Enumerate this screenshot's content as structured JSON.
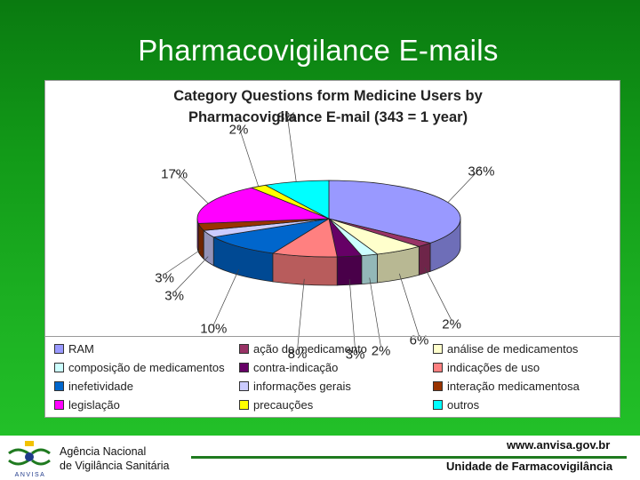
{
  "slide": {
    "title": "Pharmacovigilance E-mails"
  },
  "chart_data": {
    "type": "pie",
    "title_line1": "Category Questions form Medicine Users by",
    "title_line2": "Pharmacovigilance E-mail (343 = 1 year)",
    "legend_position": "bottom",
    "slices": [
      {
        "name": "RAM",
        "value": 36,
        "label": "36%",
        "color": "#9999ff"
      },
      {
        "name": "ação do medicamento",
        "value": 2,
        "label": "2%",
        "color": "#993366"
      },
      {
        "name": "análise de medicamentos",
        "value": 6,
        "label": "6%",
        "color": "#ffffcc"
      },
      {
        "name": "composição de medicamentos",
        "value": 2,
        "label": "2%",
        "color": "#ccffff"
      },
      {
        "name": "contra-indicação",
        "value": 3,
        "label": "3%",
        "color": "#660066"
      },
      {
        "name": "indicações de uso",
        "value": 8,
        "label": "8%",
        "color": "#ff8080"
      },
      {
        "name": "inefetividade",
        "value": 10,
        "label": "10%",
        "color": "#0066cc"
      },
      {
        "name": "informações gerais",
        "value": 3,
        "label": "3%",
        "color": "#ccccff"
      },
      {
        "name": "interação medicamentosa",
        "value": 3,
        "label": "3%",
        "color": "#993300"
      },
      {
        "name": "legislação",
        "value": 17,
        "label": "17%",
        "color": "#ff00ff"
      },
      {
        "name": "precauções",
        "value": 2,
        "label": "2%",
        "color": "#ffff00"
      },
      {
        "name": "outros",
        "value": 8,
        "label": "8%",
        "color": "#00ffff"
      }
    ]
  },
  "footer": {
    "agency_line1": "Agência Nacional",
    "agency_line2": "de Vigilância Sanitária",
    "logo_text": "ANVISA",
    "website": "www.anvisa.gov.br",
    "unit": "Unidade de Farmacovigilância"
  }
}
